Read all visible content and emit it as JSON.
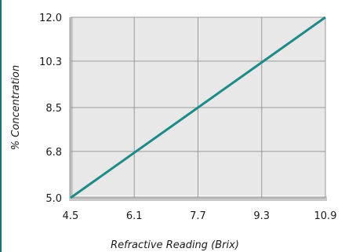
{
  "colors": {
    "plot_bg": "#e8e8e8",
    "grid": "#9a9a9a",
    "axis_shadow": "#c9c9c9",
    "line": "#1f8a8a",
    "left_bar": "#1f6f78"
  },
  "chart_data": {
    "type": "line",
    "title": "",
    "xlabel": "Refractive Reading (Brix)",
    "ylabel": "% Concentration",
    "xlim": [
      4.5,
      10.9
    ],
    "ylim": [
      5.0,
      12.0
    ],
    "x_ticks": [
      "4.5",
      "6.1",
      "7.7",
      "9.3",
      "10.9"
    ],
    "y_ticks": [
      "5.0",
      "6.8",
      "8.5",
      "10.3",
      "12.0"
    ],
    "grid": true,
    "series": [
      {
        "x": [
          4.5,
          10.9
        ],
        "y": [
          5.0,
          12.0
        ]
      }
    ]
  }
}
